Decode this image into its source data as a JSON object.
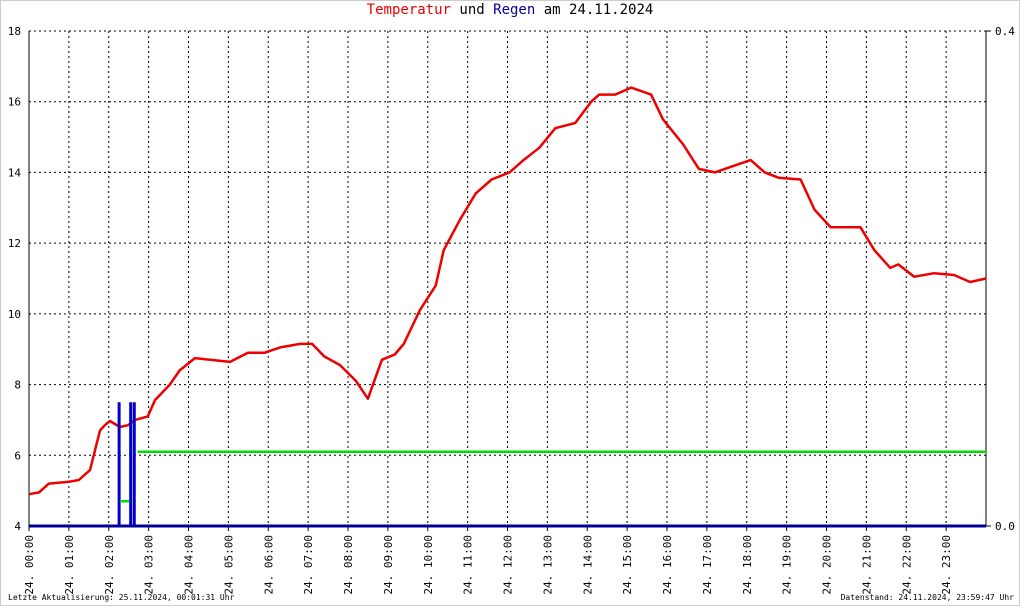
{
  "chart_data": {
    "type": "line",
    "title_parts": [
      {
        "text": "Temperatur",
        "color": "#ee0000"
      },
      {
        "text": "und",
        "color": "#000000"
      },
      {
        "text": "Regen",
        "color": "#000099"
      },
      {
        "text": "am 24.11.2024",
        "color": "#000000"
      }
    ],
    "footer_left": "Letzte Aktualisierung: 25.11.2024, 00:01:31 Uhr",
    "footer_right": "Datenstand: 24.11.2024, 23:59:47 Uhr",
    "xlim": [
      0,
      24
    ],
    "xticks": [
      {
        "value": 0,
        "label": "24. 00:00"
      },
      {
        "value": 1,
        "label": "24. 01:00"
      },
      {
        "value": 2,
        "label": "24. 02:00"
      },
      {
        "value": 3,
        "label": "24. 03:00"
      },
      {
        "value": 4,
        "label": "24. 04:00"
      },
      {
        "value": 5,
        "label": "24. 05:00"
      },
      {
        "value": 6,
        "label": "24. 06:00"
      },
      {
        "value": 7,
        "label": "24. 07:00"
      },
      {
        "value": 8,
        "label": "24. 08:00"
      },
      {
        "value": 9,
        "label": "24. 09:00"
      },
      {
        "value": 10,
        "label": "24. 10:00"
      },
      {
        "value": 11,
        "label": "24. 11:00"
      },
      {
        "value": 12,
        "label": "24. 12:00"
      },
      {
        "value": 13,
        "label": "24. 13:00"
      },
      {
        "value": 14,
        "label": "24. 14:00"
      },
      {
        "value": 15,
        "label": "24. 15:00"
      },
      {
        "value": 16,
        "label": "24. 16:00"
      },
      {
        "value": 17,
        "label": "24. 17:00"
      },
      {
        "value": 18,
        "label": "24. 18:00"
      },
      {
        "value": 19,
        "label": "24. 19:00"
      },
      {
        "value": 20,
        "label": "24. 20:00"
      },
      {
        "value": 21,
        "label": "24. 21:00"
      },
      {
        "value": 22,
        "label": "24. 22:00"
      },
      {
        "value": 23,
        "label": "24. 23:00"
      }
    ],
    "ylim": [
      4,
      18
    ],
    "yticks": [
      4,
      6,
      8,
      10,
      12,
      14,
      16,
      18
    ],
    "y2lim": [
      0,
      0.4
    ],
    "y2ticks": [
      {
        "value": 0,
        "label": "0.0"
      },
      0.4
    ],
    "grid": true,
    "series": [
      {
        "type": "line",
        "color": "#ee0000",
        "x": [
          0,
          0.25,
          0.5,
          1.0,
          1.25,
          1.53,
          1.78,
          1.9,
          2.03,
          2.28,
          2.48,
          2.66,
          2.98,
          3.16,
          3.53,
          3.78,
          4.16,
          4.54,
          5.04,
          5.49,
          5.9,
          6.3,
          6.8,
          7.1,
          7.4,
          7.8,
          8.2,
          8.5,
          8.85,
          9.17,
          9.4,
          9.8,
          10.2,
          10.4,
          10.8,
          11.2,
          11.6,
          12.05,
          12.4,
          12.8,
          13.2,
          13.7,
          14.1,
          14.3,
          14.7,
          15.1,
          15.6,
          15.9,
          16.4,
          16.8,
          17.2,
          17.7,
          18.1,
          18.45,
          18.8,
          19.35,
          19.7,
          20.1,
          20.45,
          20.85,
          21.2,
          21.6,
          21.8,
          22.2,
          22.7,
          23.2,
          23.6,
          24
        ],
        "values": [
          4.9,
          4.95,
          5.2,
          5.25,
          5.3,
          5.58,
          6.7,
          6.85,
          6.97,
          6.8,
          6.85,
          7.0,
          7.1,
          7.56,
          8.0,
          8.4,
          8.75,
          8.7,
          8.64,
          8.9,
          8.9,
          9.05,
          9.15,
          9.15,
          8.8,
          8.55,
          8.1,
          7.6,
          8.7,
          8.85,
          9.15,
          10.1,
          10.8,
          11.8,
          12.65,
          13.4,
          13.8,
          14.0,
          14.35,
          14.7,
          15.25,
          15.4,
          16.0,
          16.2,
          16.2,
          16.4,
          16.2,
          15.5,
          14.8,
          14.1,
          14.0,
          14.2,
          14.35,
          14.0,
          13.85,
          13.8,
          12.95,
          12.45,
          12.45,
          12.45,
          11.8,
          11.3,
          11.4,
          11.05,
          11.15,
          11.1,
          10.9,
          11.0
        ]
      },
      {
        "type": "bar",
        "axis": "y2",
        "color": "#0000cc",
        "x": [
          2.26,
          2.55,
          2.64
        ],
        "values": [
          0.1,
          0.1,
          0.1
        ]
      },
      {
        "type": "line",
        "axis": "y2",
        "color": "#00dd00",
        "x": [
          2.28,
          2.52,
          2.6,
          2.72,
          24
        ],
        "values": [
          0.02,
          0.02,
          null,
          0.06,
          0.06
        ]
      }
    ]
  }
}
